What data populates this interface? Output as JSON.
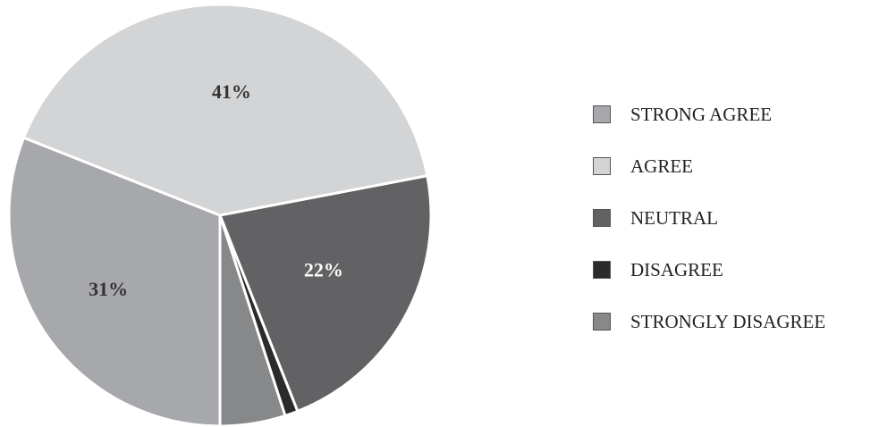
{
  "chart_data": {
    "type": "pie",
    "title": "",
    "categories": [
      "STRONG AGREE",
      "AGREE",
      "NEUTRAL",
      "DISAGREE",
      "STRONGLY DISAGREE"
    ],
    "values": [
      31,
      41,
      22,
      1,
      5
    ],
    "value_labels": [
      "31%",
      "41%",
      "22%",
      "",
      ""
    ],
    "colors": [
      "#a7a8ab",
      "#d3d4d6",
      "#626264",
      "#2b2b2d",
      "#87888a"
    ],
    "label_colors": [
      "#333333",
      "#333333",
      "#ffffff",
      "#ffffff",
      "#ffffff"
    ],
    "legend_position": "right"
  }
}
